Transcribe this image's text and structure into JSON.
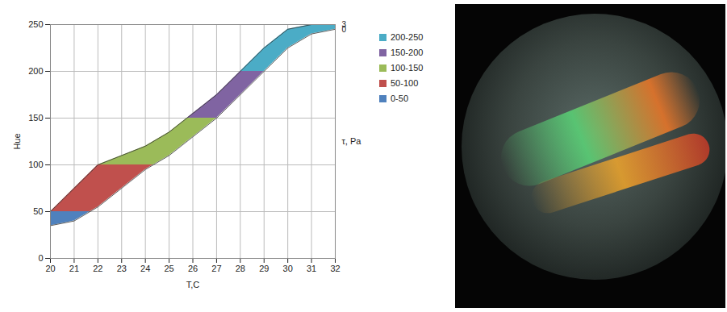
{
  "chart_data": {
    "type": "area",
    "xlabel": "T,C",
    "ylabel": "Hue",
    "zlabel": "τ, Pa",
    "x": [
      20,
      21,
      22,
      23,
      24,
      25,
      26,
      27,
      28,
      29,
      30,
      31,
      32
    ],
    "xlim": [
      20,
      32
    ],
    "xticks": [
      20,
      21,
      22,
      23,
      24,
      25,
      26,
      27,
      28,
      29,
      30,
      31,
      32
    ],
    "ylim": [
      0,
      250
    ],
    "yticks": [
      0,
      50,
      100,
      150,
      200,
      250
    ],
    "zticks": [
      0,
      3
    ],
    "series": [
      {
        "tau": 0,
        "values": [
          35,
          40,
          55,
          75,
          95,
          110,
          130,
          150,
          175,
          200,
          225,
          240,
          245
        ]
      },
      {
        "tau": 3,
        "values": [
          50,
          75,
          100,
          110,
          120,
          135,
          155,
          175,
          200,
          225,
          245,
          250,
          250
        ]
      }
    ],
    "bands": [
      {
        "label": "200-250",
        "range": [
          200,
          250
        ],
        "color": "#4bacc6"
      },
      {
        "label": "150-200",
        "range": [
          150,
          200
        ],
        "color": "#8064a2"
      },
      {
        "label": "100-150",
        "range": [
          100,
          150
        ],
        "color": "#9bbb59"
      },
      {
        "label": "50-100",
        "range": [
          50,
          100
        ],
        "color": "#c0504d"
      },
      {
        "label": "0-50",
        "range": [
          0,
          50
        ],
        "color": "#4f81bd"
      }
    ],
    "grid": true,
    "legend": "right"
  }
}
